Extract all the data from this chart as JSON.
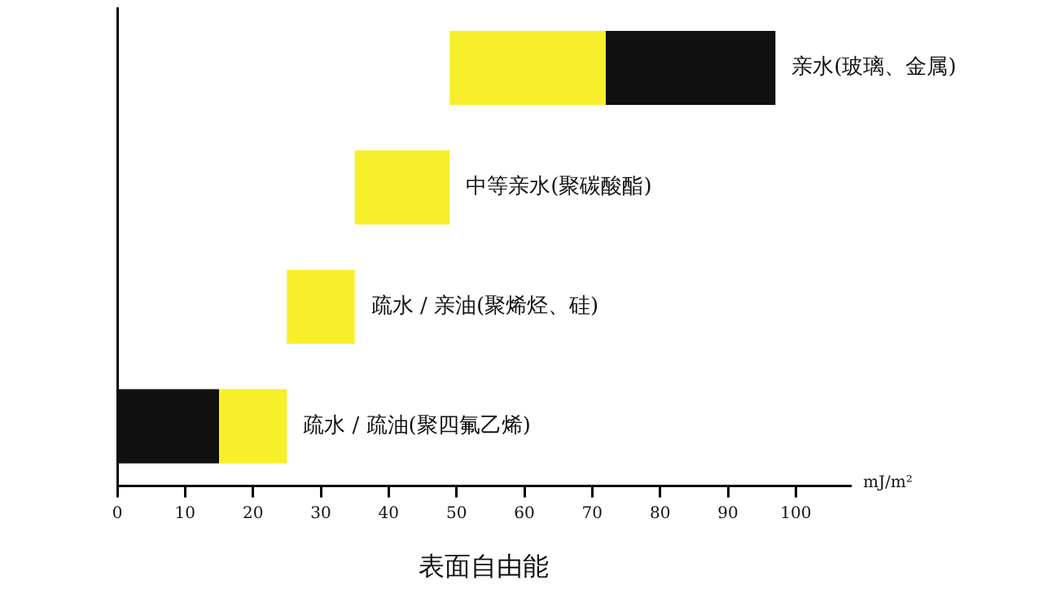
{
  "chart_data": {
    "type": "bar",
    "orientation": "horizontal",
    "xlabel": "表面自由能",
    "categories": [
      "亲水(玻璃、金属)",
      "中等亲水(聚碳酸酯)",
      "疏水 / 亲油(聚烯烃、硅)",
      "疏水 / 疏油(聚四氟乙烯)"
    ],
    "series": [
      {
        "color": "#f7ef2a",
        "base": [
          49,
          35,
          25,
          15
        ],
        "values": [
          23,
          14,
          10,
          10
        ]
      },
      {
        "color": "#111111",
        "base": [
          72,
          null,
          null,
          0
        ],
        "values": [
          25,
          null,
          null,
          15
        ]
      }
    ],
    "xlim": [
      0,
      108
    ],
    "xticks": [
      0,
      10,
      20,
      30,
      40,
      50,
      60,
      70,
      80,
      90,
      100
    ],
    "tick_labels": "x",
    "grid": false,
    "legend": false,
    "annotations": [
      "mJ/m²"
    ]
  }
}
